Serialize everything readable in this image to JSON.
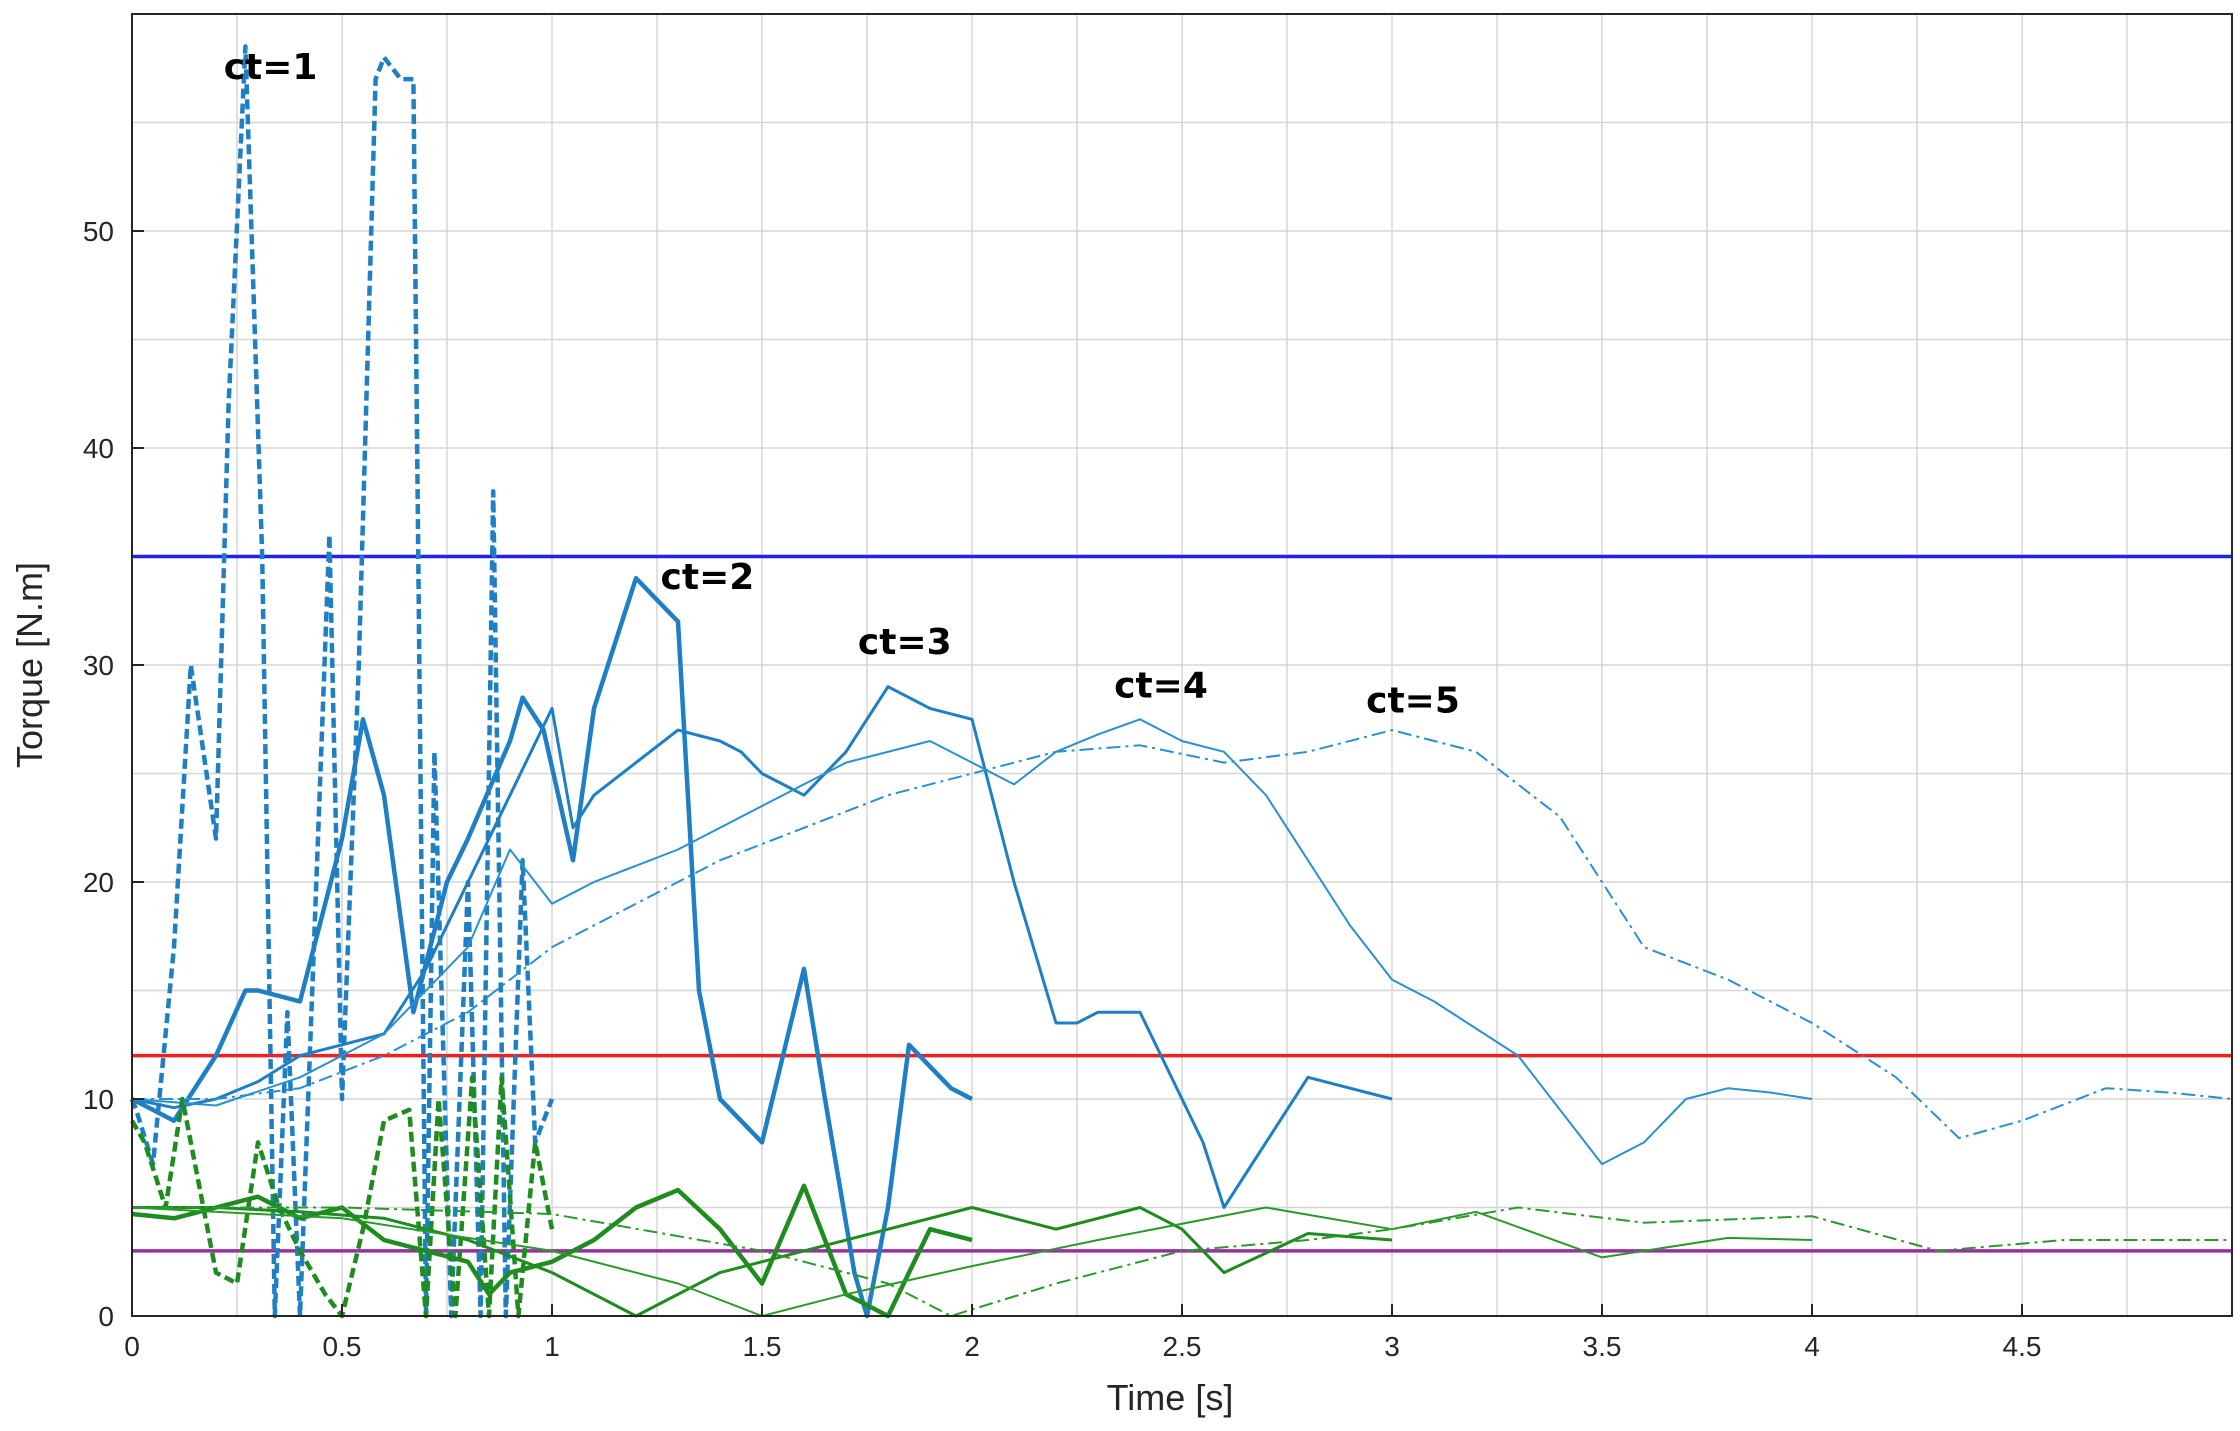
{
  "chart_data": {
    "type": "line",
    "xlabel": "Time [s]",
    "ylabel": "Torque [N.m]",
    "xlim": [
      0,
      5
    ],
    "ylim": [
      0,
      60
    ],
    "xticks": [
      0,
      0.5,
      1,
      1.5,
      2,
      2.5,
      3,
      3.5,
      4,
      4.5
    ],
    "xtick_labels": [
      "0",
      "0.5",
      "1",
      "1.5",
      "2",
      "2.5",
      "3",
      "3.5",
      "4",
      "4.5"
    ],
    "yticks": [
      0,
      10,
      20,
      30,
      40,
      50
    ],
    "ytick_labels": [
      "0",
      "10",
      "20",
      "30",
      "40",
      "50"
    ],
    "grid": true,
    "reference_lines": [
      {
        "y": 35,
        "color": "#1f22ee"
      },
      {
        "y": 12,
        "color": "#ee2020"
      },
      {
        "y": 3,
        "color": "#9a2fa0"
      }
    ],
    "annotations": [
      {
        "text": "ct=1",
        "x": 0.33,
        "y": 57
      },
      {
        "text": "ct=2",
        "x": 1.37,
        "y": 33.5
      },
      {
        "text": "ct=3",
        "x": 1.84,
        "y": 30.5
      },
      {
        "text": "ct=4",
        "x": 2.45,
        "y": 28.5
      },
      {
        "text": "ct=5",
        "x": 3.05,
        "y": 27.8
      }
    ],
    "series": [
      {
        "color": "#1f7fc4",
        "style": "dashed-bold",
        "x": [
          0,
          0.01,
          0.05,
          0.1,
          0.14,
          0.2,
          0.23,
          0.27,
          0.31,
          0.34,
          0.37,
          0.4,
          0.47,
          0.5,
          0.54,
          0.58,
          0.6,
          0.64,
          0.67,
          0.7,
          0.72,
          0.76,
          0.8,
          0.83,
          0.86,
          0.89,
          0.93,
          0.96,
          1.0
        ],
        "y": [
          10,
          9.5,
          7,
          17,
          30,
          22,
          42,
          58.5,
          35,
          0,
          14,
          0,
          36,
          10,
          30,
          57,
          58,
          57,
          57,
          0,
          26,
          0,
          20,
          0,
          38,
          0,
          21,
          8,
          10
        ]
      },
      {
        "color": "#1f7fc4",
        "style": "solid-bold",
        "x": [
          0,
          0.1,
          0.2,
          0.27,
          0.3,
          0.4,
          0.5,
          0.55,
          0.6,
          0.67,
          0.75,
          0.8,
          0.9,
          0.93,
          0.98,
          1.05,
          1.1,
          1.2,
          1.25,
          1.3,
          1.35,
          1.4,
          1.5,
          1.55,
          1.6,
          1.65,
          1.72,
          1.75,
          1.8,
          1.85,
          1.9,
          1.95,
          2.0
        ],
        "y": [
          10,
          9,
          12,
          15,
          15,
          14.5,
          22,
          27.5,
          24,
          14,
          20,
          22,
          26.5,
          28.5,
          27,
          21,
          28,
          34,
          33,
          32,
          15,
          10,
          8,
          12,
          16,
          10,
          2,
          0,
          5,
          12.5,
          11.5,
          10.5,
          10
        ]
      },
      {
        "color": "#1f7fc4",
        "style": "solid",
        "x": [
          0,
          0.1,
          0.2,
          0.3,
          0.4,
          0.5,
          0.6,
          0.7,
          0.8,
          0.9,
          1.0,
          1.05,
          1.1,
          1.2,
          1.3,
          1.4,
          1.45,
          1.5,
          1.6,
          1.7,
          1.8,
          1.85,
          1.9,
          2.0,
          2.1,
          2.2,
          2.25,
          2.3,
          2.4,
          2.45,
          2.55,
          2.6,
          2.7,
          2.8,
          2.9,
          3.0
        ],
        "y": [
          10,
          9.6,
          10,
          10.8,
          12,
          12.5,
          13,
          16,
          20,
          24,
          28,
          22.5,
          24,
          25.5,
          27,
          26.5,
          26,
          25,
          24,
          26,
          29,
          28.5,
          28,
          27.5,
          20,
          13.5,
          13.5,
          14,
          14,
          12,
          8,
          5,
          8,
          11,
          10.5,
          10
        ]
      },
      {
        "color": "#2a90d0",
        "style": "solid-thin",
        "x": [
          0,
          0.2,
          0.4,
          0.6,
          0.8,
          0.9,
          1.0,
          1.1,
          1.3,
          1.5,
          1.7,
          1.9,
          2.0,
          2.1,
          2.2,
          2.3,
          2.4,
          2.5,
          2.6,
          2.7,
          2.8,
          2.9,
          3.0,
          3.1,
          3.3,
          3.4,
          3.5,
          3.6,
          3.7,
          3.8,
          3.9,
          4.0
        ],
        "y": [
          10,
          9.7,
          11,
          13,
          17,
          21.5,
          19,
          20,
          21.5,
          23.5,
          25.5,
          26.5,
          25.5,
          24.5,
          26,
          26.8,
          27.5,
          26.5,
          26,
          24,
          21,
          18,
          15.5,
          14.5,
          12,
          9.5,
          7,
          8,
          10,
          10.5,
          10.3,
          10
        ]
      },
      {
        "color": "#2a90d0",
        "style": "dashdot",
        "x": [
          0,
          0.2,
          0.4,
          0.6,
          0.8,
          1.0,
          1.2,
          1.4,
          1.6,
          1.8,
          2.0,
          2.2,
          2.4,
          2.6,
          2.8,
          3.0,
          3.2,
          3.4,
          3.6,
          3.8,
          4.0,
          4.2,
          4.35,
          4.5,
          4.7,
          4.85,
          5.0
        ],
        "y": [
          10,
          10,
          10.5,
          12,
          14,
          17,
          19,
          21,
          22.5,
          24,
          25,
          26,
          26.3,
          25.5,
          26,
          27,
          26,
          23,
          17,
          15.5,
          13.5,
          11,
          8.2,
          9,
          10.5,
          10.3,
          10
        ]
      },
      {
        "color": "#1e8c1e",
        "style": "dashed-bold",
        "x": [
          0,
          0.03,
          0.08,
          0.12,
          0.16,
          0.2,
          0.25,
          0.3,
          0.35,
          0.4,
          0.46,
          0.5,
          0.55,
          0.6,
          0.66,
          0.7,
          0.73,
          0.77,
          0.81,
          0.85,
          0.88,
          0.92,
          0.96,
          1.0
        ],
        "y": [
          9,
          8,
          5,
          10,
          6,
          2,
          1.5,
          8,
          5,
          3,
          1,
          0,
          4,
          9,
          9.5,
          0,
          10,
          0,
          11,
          0,
          11,
          0,
          8,
          4
        ]
      },
      {
        "color": "#1e8c1e",
        "style": "solid-bold",
        "x": [
          0,
          0.1,
          0.2,
          0.3,
          0.4,
          0.5,
          0.6,
          0.7,
          0.8,
          0.85,
          0.9,
          1.0,
          1.1,
          1.2,
          1.3,
          1.4,
          1.5,
          1.6,
          1.7,
          1.8,
          1.9,
          2.0
        ],
        "y": [
          4.7,
          4.5,
          5,
          5.5,
          4.5,
          5,
          3.5,
          3,
          2.5,
          1,
          2,
          2.5,
          3.5,
          5,
          5.8,
          4,
          1.5,
          6,
          1,
          0,
          4,
          3.5
        ]
      },
      {
        "color": "#1e8c1e",
        "style": "solid",
        "x": [
          0,
          0.2,
          0.4,
          0.6,
          0.8,
          1.0,
          1.2,
          1.4,
          1.6,
          1.8,
          2.0,
          2.2,
          2.4,
          2.5,
          2.6,
          2.8,
          3.0
        ],
        "y": [
          5,
          5,
          4.8,
          4.5,
          3.5,
          2,
          0,
          2,
          3,
          4,
          5,
          4,
          5,
          4,
          2,
          3.8,
          3.5
        ]
      },
      {
        "color": "#2a9a2a",
        "style": "solid-thin",
        "x": [
          0,
          0.5,
          1.0,
          1.3,
          1.5,
          1.7,
          2.0,
          2.3,
          2.7,
          3.0,
          3.2,
          3.5,
          3.8,
          4.0
        ],
        "y": [
          5,
          4.5,
          3,
          1.5,
          0,
          1,
          2.3,
          3.5,
          5,
          4,
          4.8,
          2.7,
          3.6,
          3.5
        ]
      },
      {
        "color": "#2a9a2a",
        "style": "dashdot",
        "x": [
          0,
          0.5,
          1.0,
          1.5,
          1.8,
          1.95,
          2.2,
          2.5,
          2.8,
          3.0,
          3.3,
          3.6,
          4.0,
          4.3,
          4.6,
          5.0
        ],
        "y": [
          5,
          5,
          4.7,
          3,
          1.5,
          0,
          1.5,
          3,
          3.5,
          4,
          5,
          4.3,
          4.6,
          3,
          3.5,
          3.5
        ]
      }
    ]
  }
}
